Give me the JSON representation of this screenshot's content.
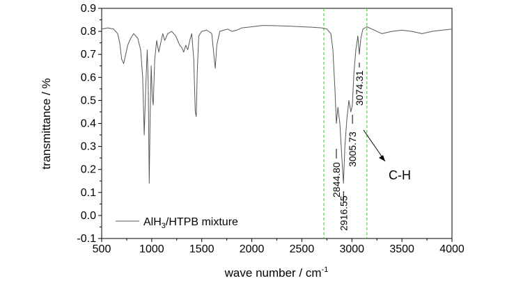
{
  "chart_data": {
    "type": "line",
    "xlabel": "wave number / cm",
    "xlabel_superscript": "-1",
    "ylabel": "transmittance / %",
    "xlim": [
      500,
      4000
    ],
    "ylim": [
      -0.1,
      0.9
    ],
    "x_ticks": [
      500,
      1000,
      1500,
      2000,
      2500,
      3000,
      3500,
      4000
    ],
    "x_tick_labels": [
      "500",
      "1000",
      "1500",
      "2000",
      "2500",
      "3000",
      "3500",
      "4000"
    ],
    "y_ticks": [
      -0.1,
      0.0,
      0.1,
      0.2,
      0.3,
      0.4,
      0.5,
      0.6,
      0.7,
      0.8,
      0.9
    ],
    "y_tick_labels": [
      "-0.1",
      "0.0",
      "0.1",
      "0.2",
      "0.3",
      "0.4",
      "0.5",
      "0.6",
      "0.7",
      "0.8",
      "0.9"
    ],
    "grid": false,
    "legend": {
      "placement": "bottom-left",
      "entry_prefix": "AlH",
      "entry_subscript": "3",
      "entry_suffix": "/HTPB mixture"
    },
    "series": [
      {
        "name": "AlH3/HTPB mixture",
        "color": "#555555",
        "x": [
          500,
          560,
          620,
          660,
          680,
          700,
          720,
          740,
          760,
          790,
          820,
          860,
          890,
          910,
          925,
          940,
          955,
          965,
          975,
          985,
          995,
          1005,
          1015,
          1030,
          1050,
          1070,
          1090,
          1110,
          1130,
          1160,
          1200,
          1240,
          1280,
          1300,
          1320,
          1340,
          1360,
          1380,
          1400,
          1420,
          1435,
          1445,
          1455,
          1470,
          1500,
          1550,
          1600,
          1620,
          1635,
          1650,
          1680,
          1720,
          1760,
          1800,
          1850,
          1900,
          2000,
          2100,
          2200,
          2300,
          2400,
          2500,
          2600,
          2700,
          2750,
          2790,
          2810,
          2830,
          2845,
          2860,
          2880,
          2900,
          2916,
          2930,
          2950,
          2970,
          2990,
          3005,
          3020,
          3040,
          3060,
          3074,
          3090,
          3110,
          3150,
          3200,
          3300,
          3400,
          3500,
          3600,
          3700,
          3800,
          3900,
          4000
        ],
        "y": [
          0.81,
          0.815,
          0.81,
          0.79,
          0.75,
          0.68,
          0.66,
          0.7,
          0.74,
          0.77,
          0.79,
          0.77,
          0.72,
          0.6,
          0.35,
          0.55,
          0.72,
          0.58,
          0.14,
          0.45,
          0.65,
          0.52,
          0.48,
          0.68,
          0.76,
          0.71,
          0.75,
          0.79,
          0.76,
          0.79,
          0.8,
          0.78,
          0.74,
          0.73,
          0.71,
          0.74,
          0.72,
          0.76,
          0.79,
          0.68,
          0.45,
          0.43,
          0.62,
          0.78,
          0.8,
          0.805,
          0.79,
          0.7,
          0.64,
          0.74,
          0.8,
          0.805,
          0.81,
          0.8,
          0.805,
          0.815,
          0.82,
          0.825,
          0.825,
          0.824,
          0.822,
          0.82,
          0.818,
          0.815,
          0.81,
          0.79,
          0.72,
          0.55,
          0.4,
          0.47,
          0.4,
          0.25,
          0.14,
          0.3,
          0.42,
          0.5,
          0.45,
          0.48,
          0.62,
          0.72,
          0.78,
          0.7,
          0.77,
          0.81,
          0.82,
          0.81,
          0.79,
          0.8,
          0.805,
          0.8,
          0.79,
          0.8,
          0.805,
          0.81
        ]
      }
    ],
    "reference_lines": [
      {
        "x": 2720,
        "color": "#22cc22",
        "style": "dashed"
      },
      {
        "x": 3150,
        "color": "#22cc22",
        "style": "dashed"
      }
    ],
    "annotations": [
      {
        "text": "2844.80",
        "x": 2844.8
      },
      {
        "text": "2916.55",
        "x": 2916.55
      },
      {
        "text": "3005.73",
        "x": 3005.73
      },
      {
        "text": "3074.31",
        "x": 3074.31
      }
    ],
    "callout_label": "C-H"
  }
}
